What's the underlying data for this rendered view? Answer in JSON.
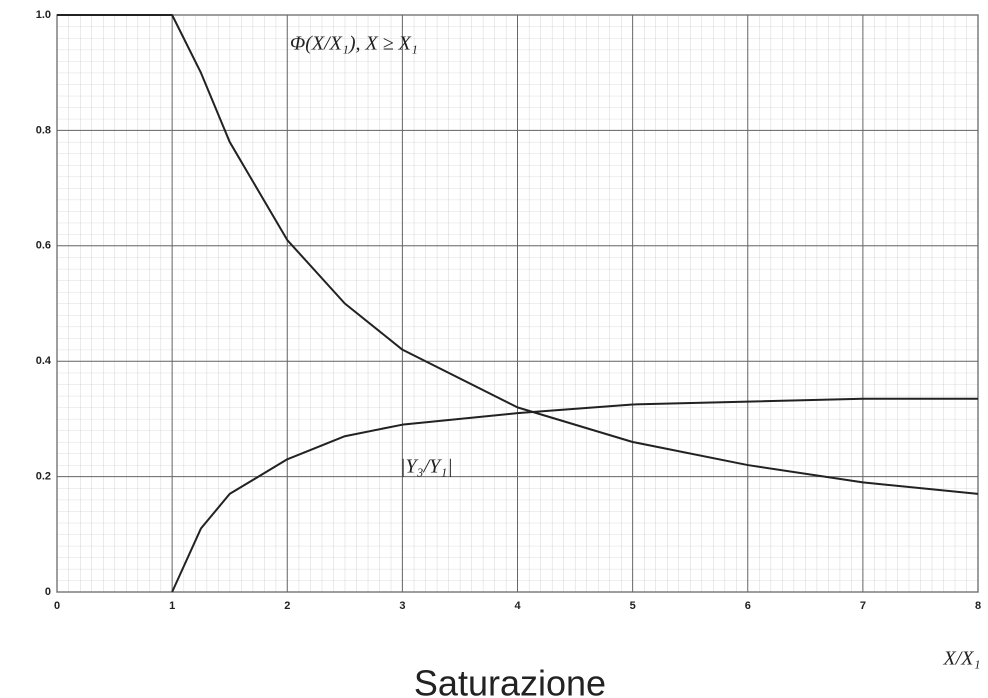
{
  "chart_data": {
    "type": "line",
    "title": "Saturazione",
    "x_label": "X/X₁",
    "x": [
      0,
      1,
      1.25,
      1.5,
      2,
      2.5,
      3,
      4,
      5,
      6,
      7,
      8
    ],
    "series": [
      {
        "name": "Φ(X/X₁),   X ≥ X₁",
        "color": "#222222",
        "values": [
          1,
          1,
          0.9,
          0.78,
          0.61,
          0.5,
          0.42,
          0.32,
          0.26,
          0.22,
          0.19,
          0.17
        ]
      },
      {
        "name": "|Y₃/Y₁|",
        "color": "#222222",
        "values": [
          null,
          0,
          0.11,
          0.17,
          0.23,
          0.27,
          0.29,
          0.31,
          0.325,
          0.33,
          0.335,
          0.335
        ]
      }
    ],
    "xlim": [
      0,
      8
    ],
    "ylim": [
      0,
      1
    ],
    "xticks": [
      0,
      1,
      2,
      3,
      4,
      5,
      6,
      7,
      8
    ],
    "yticks": [
      0,
      0.2,
      0.4,
      0.6,
      0.8,
      {
        "value": 1,
        "label": "1.0"
      }
    ],
    "grid": true
  }
}
